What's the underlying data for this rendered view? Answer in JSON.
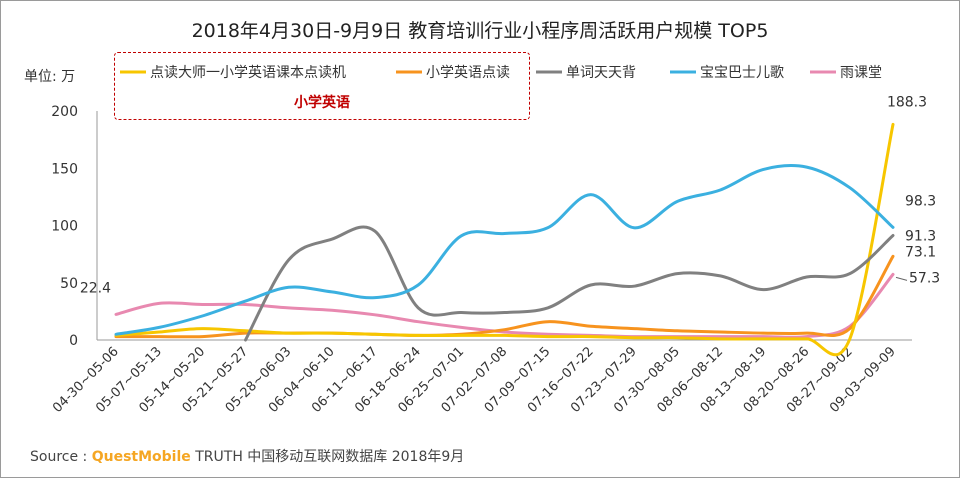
{
  "chart_data": {
    "type": "line",
    "title": "2018年4月30日-9月9日 教育培训行业小程序周活跃用户规模 TOP5",
    "unit_label": "单位: 万",
    "legend_tag": "小学英语",
    "ylim": [
      0,
      200
    ],
    "yticks": [
      "0",
      "50",
      "100",
      "150",
      "200"
    ],
    "grid": false,
    "legend_position": "top-left",
    "categories": [
      "04-30~05-06",
      "05-07~05-13",
      "05-14~05-20",
      "05-21~05-27",
      "05-28~06-03",
      "06-04~06-10",
      "06-11~06-17",
      "06-18~06-24",
      "06-25~07-01",
      "07-02~07-08",
      "07-09~07-15",
      "07-16~07-22",
      "07-23~07-29",
      "07-30~08-05",
      "08-06~08-12",
      "08-13~08-19",
      "08-20~08-26",
      "08-27~09-02",
      "09-03~09-09"
    ],
    "series": [
      {
        "name": "点读大师一小学英语课本点读机",
        "color": "#f7c600",
        "values": [
          4,
          7,
          10,
          8,
          6,
          6,
          5,
          4,
          4,
          4,
          3,
          3,
          2,
          2,
          1,
          1,
          1,
          1,
          188.3
        ]
      },
      {
        "name": "小学英语点读",
        "color": "#f7931e",
        "values": [
          3,
          3,
          3,
          6,
          6,
          6,
          5,
          4,
          5,
          9,
          16,
          12,
          10,
          8,
          7,
          6,
          6,
          10,
          73.1
        ]
      },
      {
        "name": "单词天天背",
        "color": "#808080",
        "values": [
          null,
          null,
          null,
          0,
          70,
          88,
          95,
          28,
          24,
          24,
          28,
          48,
          47,
          58,
          56,
          44,
          55,
          58,
          91.3
        ]
      },
      {
        "name": "宝宝巴士儿歌",
        "color": "#3bb0e0",
        "values": [
          5,
          11,
          21,
          34,
          46,
          42,
          37,
          48,
          91,
          93,
          98,
          127,
          98,
          121,
          131,
          149,
          151,
          133,
          98.3
        ]
      },
      {
        "name": "雨课堂",
        "color": "#e889b0",
        "values": [
          22.4,
          32,
          31,
          31,
          28,
          26,
          22,
          16,
          11,
          7,
          5,
          4,
          3,
          3,
          3,
          3,
          3,
          12,
          57.3
        ]
      }
    ],
    "data_labels": [
      {
        "series": 4,
        "index": 0,
        "text": "22.4"
      },
      {
        "series": 0,
        "index": 18,
        "text": "188.3"
      },
      {
        "series": 3,
        "index": 18,
        "text": "98.3"
      },
      {
        "series": 2,
        "index": 18,
        "text": "91.3"
      },
      {
        "series": 1,
        "index": 18,
        "text": "73.1"
      },
      {
        "series": 4,
        "index": 18,
        "text": "57.3"
      }
    ]
  },
  "source": {
    "prefix": "Source :",
    "brand": "QuestMobile",
    "rest": "TRUTH 中国移动互联网数据库 2018年9月"
  }
}
